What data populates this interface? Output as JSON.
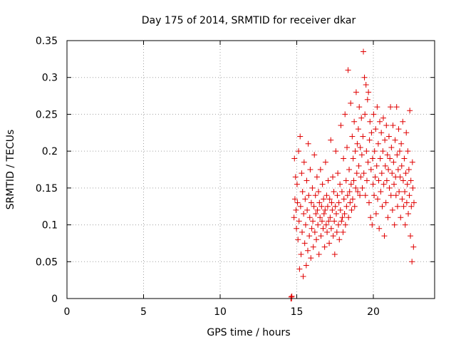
{
  "chart_data": {
    "type": "scatter",
    "title": "Day 175 of 2014, SRMTID for receiver dkar",
    "xlabel": "GPS time / hours",
    "ylabel": "SRMTID / TECUs",
    "xlim": [
      0,
      24
    ],
    "ylim": [
      0,
      0.35
    ],
    "xticks": [
      0,
      5,
      10,
      15,
      20
    ],
    "xtick_labels": [
      "0",
      "5",
      "10",
      "15",
      "20"
    ],
    "yticks": [
      0,
      0.05,
      0.1,
      0.15,
      0.2,
      0.25,
      0.3,
      0.35
    ],
    "ytick_labels": [
      "0",
      "0.05",
      "0.1",
      "0.15",
      "0.2",
      "0.25",
      "0.3",
      "0.35"
    ],
    "grid": true,
    "marker": "+",
    "color": "#e00000",
    "series": [
      {
        "name": "SRMTID",
        "x": [
          14.62,
          14.64,
          14.66,
          14.68,
          14.82,
          14.85,
          14.88,
          14.92,
          14.95,
          14.98,
          15.02,
          15.05,
          15.08,
          15.12,
          15.15,
          15.18,
          15.22,
          15.25,
          15.28,
          15.32,
          15.35,
          15.38,
          15.42,
          15.45,
          15.48,
          15.52,
          15.55,
          15.58,
          15.62,
          15.65,
          15.68,
          15.72,
          15.75,
          15.78,
          15.82,
          15.85,
          15.88,
          15.92,
          15.95,
          15.98,
          16.02,
          16.05,
          16.08,
          16.12,
          16.15,
          16.18,
          16.22,
          16.25,
          16.28,
          16.32,
          16.35,
          16.38,
          16.42,
          16.45,
          16.48,
          16.52,
          16.55,
          16.58,
          16.62,
          16.65,
          16.68,
          16.72,
          16.75,
          16.78,
          16.82,
          16.85,
          16.88,
          16.92,
          16.95,
          16.98,
          17.02,
          17.05,
          17.08,
          17.12,
          17.15,
          17.18,
          17.22,
          17.25,
          17.28,
          17.32,
          17.35,
          17.38,
          17.42,
          17.45,
          17.48,
          17.52,
          17.55,
          17.58,
          17.62,
          17.65,
          17.68,
          17.72,
          17.75,
          17.78,
          17.82,
          17.85,
          17.88,
          17.92,
          17.95,
          17.98,
          18.02,
          18.05,
          18.08,
          18.12,
          18.15,
          18.18,
          18.22,
          18.25,
          18.28,
          18.32,
          18.35,
          18.38,
          18.42,
          18.45,
          18.48,
          18.52,
          18.55,
          18.58,
          18.62,
          18.65,
          18.68,
          18.72,
          18.75,
          18.78,
          18.82,
          18.85,
          18.88,
          18.92,
          18.95,
          18.98,
          19.02,
          19.05,
          19.08,
          19.12,
          19.15,
          19.18,
          19.22,
          19.25,
          19.28,
          19.32,
          19.35,
          19.38,
          19.42,
          19.45,
          19.48,
          19.52,
          19.55,
          19.58,
          19.62,
          19.65,
          19.68,
          19.72,
          19.75,
          19.78,
          19.82,
          19.85,
          19.88,
          19.92,
          19.95,
          19.98,
          20.02,
          20.05,
          20.08,
          20.12,
          20.15,
          20.18,
          20.22,
          20.25,
          20.28,
          20.32,
          20.35,
          20.38,
          20.42,
          20.45,
          20.48,
          20.52,
          20.55,
          20.58,
          20.62,
          20.65,
          20.68,
          20.72,
          20.75,
          20.78,
          20.82,
          20.85,
          20.88,
          20.92,
          20.95,
          20.98,
          21.02,
          21.05,
          21.08,
          21.12,
          21.15,
          21.18,
          21.22,
          21.25,
          21.28,
          21.32,
          21.35,
          21.38,
          21.42,
          21.45,
          21.48,
          21.52,
          21.55,
          21.58,
          21.62,
          21.65,
          21.68,
          21.72,
          21.75,
          21.78,
          21.82,
          21.85,
          21.88,
          21.92,
          21.95,
          21.98,
          22.02,
          22.05,
          22.08,
          22.12,
          22.15,
          22.18,
          22.22,
          22.25,
          22.28,
          22.32,
          22.35,
          22.38,
          22.42,
          22.45,
          22.48,
          22.52,
          22.55,
          22.58,
          22.62,
          22.65
        ],
        "y": [
          0.0,
          0.002,
          0.0,
          0.003,
          0.11,
          0.19,
          0.135,
          0.165,
          0.12,
          0.095,
          0.155,
          0.13,
          0.08,
          0.2,
          0.105,
          0.04,
          0.22,
          0.125,
          0.06,
          0.17,
          0.09,
          0.145,
          0.03,
          0.115,
          0.185,
          0.075,
          0.135,
          0.1,
          0.045,
          0.16,
          0.12,
          0.065,
          0.21,
          0.14,
          0.085,
          0.11,
          0.175,
          0.055,
          0.13,
          0.095,
          0.15,
          0.105,
          0.07,
          0.125,
          0.195,
          0.09,
          0.14,
          0.115,
          0.08,
          0.165,
          0.12,
          0.1,
          0.145,
          0.06,
          0.13,
          0.11,
          0.175,
          0.085,
          0.125,
          0.105,
          0.155,
          0.095,
          0.135,
          0.115,
          0.07,
          0.12,
          0.185,
          0.1,
          0.14,
          0.09,
          0.125,
          0.16,
          0.105,
          0.075,
          0.135,
          0.11,
          0.215,
          0.095,
          0.13,
          0.12,
          0.165,
          0.085,
          0.145,
          0.105,
          0.06,
          0.125,
          0.2,
          0.115,
          0.09,
          0.14,
          0.17,
          0.1,
          0.13,
          0.08,
          0.155,
          0.12,
          0.235,
          0.105,
          0.145,
          0.11,
          0.09,
          0.19,
          0.135,
          0.115,
          0.25,
          0.1,
          0.16,
          0.125,
          0.205,
          0.14,
          0.31,
          0.11,
          0.175,
          0.145,
          0.13,
          0.265,
          0.155,
          0.12,
          0.22,
          0.135,
          0.19,
          0.16,
          0.24,
          0.125,
          0.2,
          0.15,
          0.28,
          0.17,
          0.21,
          0.145,
          0.23,
          0.18,
          0.26,
          0.14,
          0.205,
          0.165,
          0.245,
          0.195,
          0.15,
          0.22,
          0.335,
          0.17,
          0.3,
          0.25,
          0.14,
          0.29,
          0.2,
          0.16,
          0.27,
          0.185,
          0.28,
          0.13,
          0.215,
          0.24,
          0.11,
          0.175,
          0.225,
          0.1,
          0.19,
          0.155,
          0.25,
          0.14,
          0.2,
          0.165,
          0.23,
          0.115,
          0.18,
          0.26,
          0.135,
          0.21,
          0.16,
          0.095,
          0.24,
          0.19,
          0.145,
          0.225,
          0.17,
          0.125,
          0.2,
          0.245,
          0.155,
          0.085,
          0.215,
          0.18,
          0.13,
          0.235,
          0.16,
          0.195,
          0.11,
          0.175,
          0.22,
          0.15,
          0.19,
          0.26,
          0.14,
          0.205,
          0.17,
          0.12,
          0.235,
          0.185,
          0.155,
          0.1,
          0.215,
          0.165,
          0.14,
          0.26,
          0.195,
          0.125,
          0.175,
          0.23,
          0.145,
          0.2,
          0.165,
          0.11,
          0.21,
          0.18,
          0.135,
          0.24,
          0.16,
          0.125,
          0.19,
          0.145,
          0.1,
          0.17,
          0.225,
          0.13,
          0.155,
          0.2,
          0.115,
          0.175,
          0.14,
          0.255,
          0.085,
          0.16,
          0.125,
          0.05,
          0.185,
          0.15,
          0.07,
          0.13
        ]
      }
    ]
  }
}
